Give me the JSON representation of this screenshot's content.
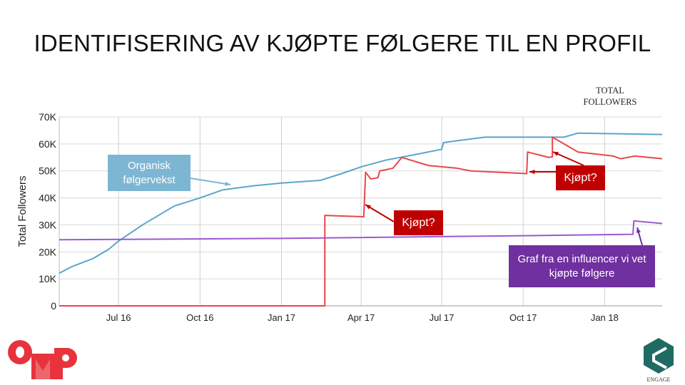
{
  "slide_title": "IDENTIFISERING AV KJØPTE FØLGERE TIL EN PROFIL",
  "chart_data": {
    "type": "line",
    "title": "",
    "legend_text": "TOTAL FOLLOWERS",
    "legend_placement": "top-right",
    "ylabel": "Total Followers",
    "xlabel": "",
    "ylim": [
      0,
      70000
    ],
    "xlim": [
      "2016-04-25",
      "2018-03-07"
    ],
    "grid": true,
    "y_ticks": [
      {
        "v": 0,
        "label": "0"
      },
      {
        "v": 10000,
        "label": "10K"
      },
      {
        "v": 20000,
        "label": "20K"
      },
      {
        "v": 30000,
        "label": "30K"
      },
      {
        "v": 40000,
        "label": "40K"
      },
      {
        "v": 50000,
        "label": "50K"
      },
      {
        "v": 60000,
        "label": "60K"
      },
      {
        "v": 70000,
        "label": "70K"
      }
    ],
    "x_ticks": [
      {
        "d": "2016-07-01",
        "label": "Jul 16"
      },
      {
        "d": "2016-10-01",
        "label": "Oct 16"
      },
      {
        "d": "2017-01-01",
        "label": "Jan 17"
      },
      {
        "d": "2017-04-01",
        "label": "Apr 17"
      },
      {
        "d": "2017-07-01",
        "label": "Jul 17"
      },
      {
        "d": "2017-10-01",
        "label": "Oct 17"
      },
      {
        "d": "2018-01-01",
        "label": "Jan 18"
      }
    ],
    "series": [
      {
        "color": "#5aa5cc",
        "points": [
          [
            "2016-04-25",
            12100
          ],
          [
            "2016-05-09",
            14500
          ],
          [
            "2016-06-02",
            17500
          ],
          [
            "2016-06-20",
            21000
          ],
          [
            "2016-07-01",
            24000
          ],
          [
            "2016-07-28",
            30000
          ],
          [
            "2016-09-02",
            37000
          ],
          [
            "2016-10-01",
            40000
          ],
          [
            "2016-10-27",
            43000
          ],
          [
            "2016-12-01",
            44500
          ],
          [
            "2017-01-01",
            45500
          ],
          [
            "2017-02-14",
            46500
          ],
          [
            "2017-03-10",
            49000
          ],
          [
            "2017-04-01",
            51500
          ],
          [
            "2017-04-29",
            54000
          ],
          [
            "2017-05-31",
            56000
          ],
          [
            "2017-07-01",
            58000
          ],
          [
            "2017-07-03",
            60500
          ],
          [
            "2017-07-26",
            61500
          ],
          [
            "2017-08-19",
            62500
          ],
          [
            "2017-10-22",
            62500
          ],
          [
            "2017-11-16",
            62500
          ],
          [
            "2017-12-02",
            64000
          ],
          [
            "2018-03-07",
            63500
          ]
        ]
      },
      {
        "color": "#e8474c",
        "points": [
          [
            "2016-04-25",
            0
          ],
          [
            "2017-02-19",
            0
          ],
          [
            "2017-02-19",
            33500
          ],
          [
            "2017-04-04",
            33000
          ],
          [
            "2017-04-06",
            49500
          ],
          [
            "2017-04-12",
            47000
          ],
          [
            "2017-04-20",
            47500
          ],
          [
            "2017-04-22",
            50000
          ],
          [
            "2017-05-07",
            51000
          ],
          [
            "2017-05-17",
            55000
          ],
          [
            "2017-06-16",
            52000
          ],
          [
            "2017-07-18",
            51000
          ],
          [
            "2017-08-03",
            50000
          ],
          [
            "2017-10-05",
            49000
          ],
          [
            "2017-10-06",
            57000
          ],
          [
            "2017-10-30",
            55000
          ],
          [
            "2017-11-03",
            55200
          ],
          [
            "2017-11-03",
            62500
          ],
          [
            "2017-12-02",
            57000
          ],
          [
            "2018-01-11",
            55500
          ],
          [
            "2018-01-19",
            54500
          ],
          [
            "2018-02-04",
            55500
          ],
          [
            "2018-03-07",
            54500
          ]
        ]
      },
      {
        "color": "#9b59d0",
        "points": [
          [
            "2016-04-25",
            24500
          ],
          [
            "2017-01-01",
            25000
          ],
          [
            "2017-10-01",
            26000
          ],
          [
            "2018-02-02",
            26500
          ],
          [
            "2018-02-03",
            31500
          ],
          [
            "2018-03-07",
            30500
          ]
        ]
      }
    ],
    "annotations": [
      {
        "text": "Organisk følgervekst",
        "color": "#7db6d3"
      },
      {
        "text": "Kjøpt?",
        "color": "#c00000"
      },
      {
        "text": "Kjøpt?",
        "color": "#c00000"
      },
      {
        "text": "Graf fra en influencer vi vet kjøpte følgere",
        "color": "#7030a0"
      }
    ]
  },
  "logos": {
    "left": "OMD",
    "right": "ENGAGE"
  }
}
